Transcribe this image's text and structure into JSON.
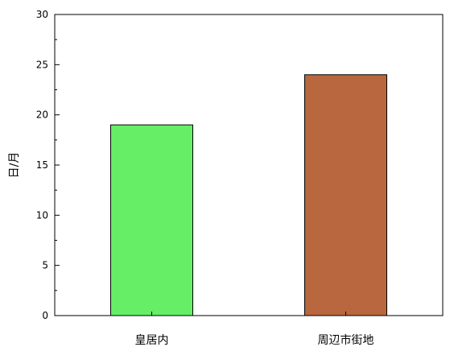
{
  "chart_data": {
    "type": "bar",
    "categories": [
      "皇居内",
      "周辺市街地"
    ],
    "values": [
      19,
      24
    ],
    "colors": [
      "#66ee66",
      "#b8673f"
    ],
    "ylabel": "日/月",
    "xlabel": "",
    "ylim": [
      0,
      30
    ],
    "yticks": [
      0,
      5,
      10,
      15,
      20,
      25,
      30
    ],
    "grid": false
  }
}
